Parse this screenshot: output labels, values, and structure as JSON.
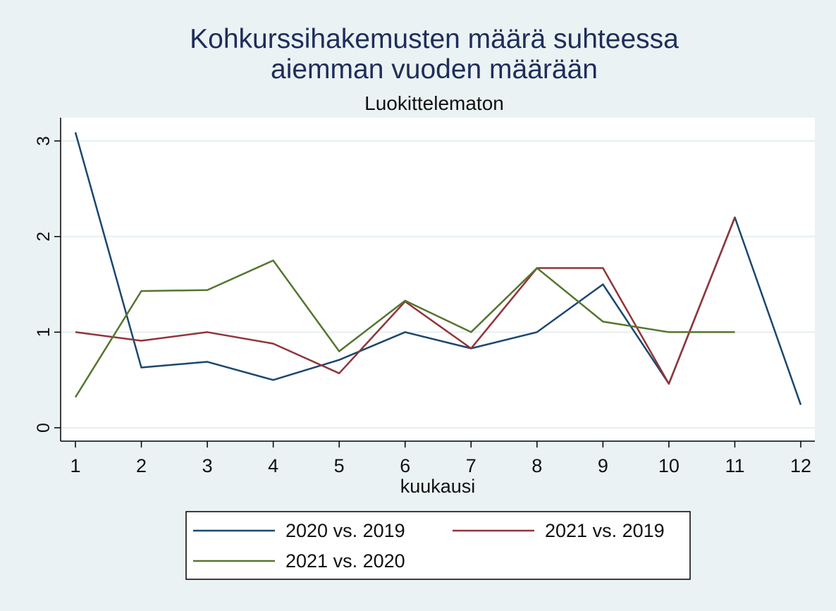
{
  "chart_data": {
    "type": "line",
    "title_lines": [
      "Kohkurssihakemusten määrä suhteessa",
      "aiemman vuoden määrään"
    ],
    "subtitle": "Luokittelematon",
    "xlabel": "kuukausi",
    "ylabel": "",
    "x": [
      1,
      2,
      3,
      4,
      5,
      6,
      7,
      8,
      9,
      10,
      11,
      12
    ],
    "xlim": [
      1,
      12
    ],
    "ylim": [
      -0.1,
      3.2
    ],
    "yticks": [
      0,
      1,
      2,
      3
    ],
    "y_tick_labels": [
      "0",
      "1",
      "2",
      "3"
    ],
    "x_tick_labels": [
      "1",
      "2",
      "3",
      "4",
      "5",
      "6",
      "7",
      "8",
      "9",
      "10",
      "11",
      "12"
    ],
    "grid": true,
    "legend_position": "bottom",
    "series": [
      {
        "name": "2020 vs. 2019",
        "color": "#1a476f",
        "values": [
          3.09,
          0.63,
          0.69,
          0.5,
          0.71,
          1.0,
          0.83,
          1.0,
          1.5,
          0.46,
          2.2,
          0.24
        ]
      },
      {
        "name": "2021 vs. 2019",
        "color": "#90353b",
        "values": [
          1.0,
          0.91,
          1.0,
          0.88,
          0.57,
          1.32,
          0.83,
          1.67,
          1.67,
          0.46,
          2.2,
          null
        ]
      },
      {
        "name": "2021 vs. 2020",
        "color": "#55752f",
        "values": [
          0.32,
          1.43,
          1.44,
          1.75,
          0.8,
          1.33,
          1.0,
          1.67,
          1.11,
          1.0,
          1.0,
          null
        ]
      }
    ]
  }
}
